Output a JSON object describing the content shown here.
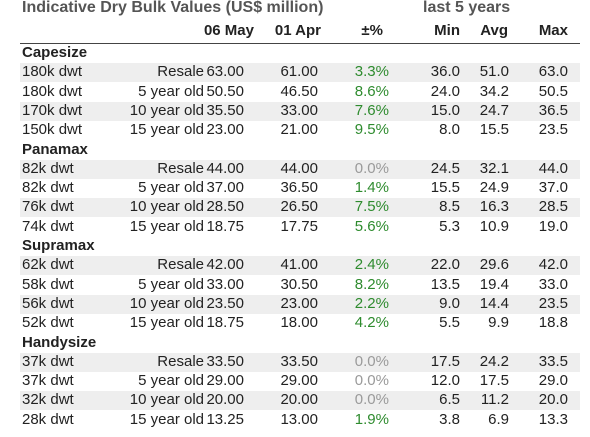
{
  "title": "Indicative Dry Bulk Values (US$ million)",
  "subtitle": "last 5 years",
  "columns": {
    "date1": "06 May",
    "date2": "01 Apr",
    "change": "±%",
    "min": "Min",
    "avg": "Avg",
    "max": "Max"
  },
  "colors": {
    "positive": "#2e8b2e",
    "zero": "#9a9a9a",
    "shade": "#eeeeee"
  },
  "sections": [
    {
      "name": "Capesize",
      "rows": [
        {
          "type": "180k dwt",
          "age": "Resale",
          "may": "63.00",
          "apr": "61.00",
          "chg": "3.3%",
          "min": "36.0",
          "avg": "51.0",
          "max": "63.0"
        },
        {
          "type": "180k dwt",
          "age": "5 year old",
          "may": "50.50",
          "apr": "46.50",
          "chg": "8.6%",
          "min": "24.0",
          "avg": "34.2",
          "max": "50.5"
        },
        {
          "type": "170k dwt",
          "age": "10 year old",
          "may": "35.50",
          "apr": "33.00",
          "chg": "7.6%",
          "min": "15.0",
          "avg": "24.7",
          "max": "36.5"
        },
        {
          "type": "150k dwt",
          "age": "15 year old",
          "may": "23.00",
          "apr": "21.00",
          "chg": "9.5%",
          "min": "8.0",
          "avg": "15.5",
          "max": "23.5"
        }
      ]
    },
    {
      "name": "Panamax",
      "rows": [
        {
          "type": "82k dwt",
          "age": "Resale",
          "may": "44.00",
          "apr": "44.00",
          "chg": "0.0%",
          "min": "24.5",
          "avg": "32.1",
          "max": "44.0"
        },
        {
          "type": "82k dwt",
          "age": "5 year old",
          "may": "37.00",
          "apr": "36.50",
          "chg": "1.4%",
          "min": "15.5",
          "avg": "24.9",
          "max": "37.0"
        },
        {
          "type": "76k dwt",
          "age": "10 year old",
          "may": "28.50",
          "apr": "26.50",
          "chg": "7.5%",
          "min": "8.5",
          "avg": "16.3",
          "max": "28.5"
        },
        {
          "type": "74k dwt",
          "age": "15 year old",
          "may": "18.75",
          "apr": "17.75",
          "chg": "5.6%",
          "min": "5.3",
          "avg": "10.9",
          "max": "19.0"
        }
      ]
    },
    {
      "name": "Supramax",
      "rows": [
        {
          "type": "62k dwt",
          "age": "Resale",
          "may": "42.00",
          "apr": "41.00",
          "chg": "2.4%",
          "min": "22.0",
          "avg": "29.6",
          "max": "42.0"
        },
        {
          "type": "58k dwt",
          "age": "5 year old",
          "may": "33.00",
          "apr": "30.50",
          "chg": "8.2%",
          "min": "13.5",
          "avg": "19.4",
          "max": "33.0"
        },
        {
          "type": "56k dwt",
          "age": "10 year old",
          "may": "23.50",
          "apr": "23.00",
          "chg": "2.2%",
          "min": "9.0",
          "avg": "14.4",
          "max": "23.5"
        },
        {
          "type": "52k dwt",
          "age": "15 year old",
          "may": "18.75",
          "apr": "18.00",
          "chg": "4.2%",
          "min": "5.5",
          "avg": "9.9",
          "max": "18.8"
        }
      ]
    },
    {
      "name": "Handysize",
      "rows": [
        {
          "type": "37k dwt",
          "age": "Resale",
          "may": "33.50",
          "apr": "33.50",
          "chg": "0.0%",
          "min": "17.5",
          "avg": "24.2",
          "max": "33.5"
        },
        {
          "type": "37k dwt",
          "age": "5 year old",
          "may": "29.00",
          "apr": "29.00",
          "chg": "0.0%",
          "min": "12.0",
          "avg": "17.5",
          "max": "29.0"
        },
        {
          "type": "32k dwt",
          "age": "10 year old",
          "may": "20.00",
          "apr": "20.00",
          "chg": "0.0%",
          "min": "6.5",
          "avg": "11.2",
          "max": "20.0"
        },
        {
          "type": "28k dwt",
          "age": "15 year old",
          "may": "13.25",
          "apr": "13.00",
          "chg": "1.9%",
          "min": "3.8",
          "avg": "6.9",
          "max": "13.3"
        }
      ]
    }
  ]
}
